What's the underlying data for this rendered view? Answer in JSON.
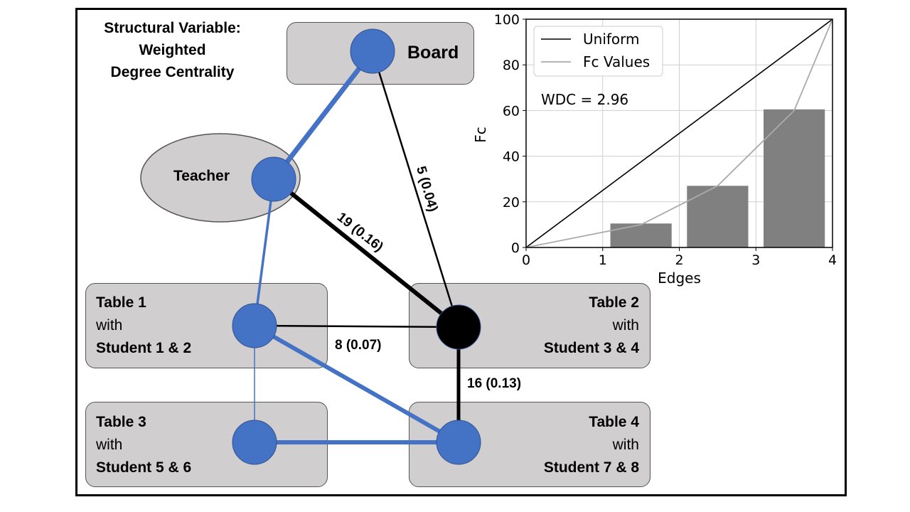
{
  "title": {
    "line1": "Structural Variable:",
    "line2": "Weighted",
    "line3": "Degree Centrality"
  },
  "nodes": {
    "board": {
      "label": "Board"
    },
    "teacher": {
      "label": "Teacher"
    },
    "table1": {
      "line1": "Table 1",
      "line2": "with",
      "line3": "Student 1 & 2"
    },
    "table2": {
      "line1": "Table 2",
      "line2": "with",
      "line3": "Student 3 & 4"
    },
    "table3": {
      "line1": "Table 3",
      "line2": "with",
      "line3": "Student 5 & 6"
    },
    "table4": {
      "line1": "Table 4",
      "line2": "with",
      "line3": "Student 7 & 8"
    }
  },
  "edges": {
    "board_table2": "5 (0.04)",
    "teacher_table2": "19 (0.16)",
    "table1_table2": "8 (0.07)",
    "table2_table4": "16 (0.13)"
  },
  "colors": {
    "node": "#4472c4",
    "focus_node": "#000000",
    "box": "#d0cece",
    "bar": "#808080"
  },
  "chart_data": {
    "type": "bar",
    "xlabel": "Edges",
    "ylabel": "Fc",
    "xlim": [
      0,
      4
    ],
    "ylim": [
      0,
      100
    ],
    "xticks": [
      "0",
      "1",
      "2",
      "3",
      "4"
    ],
    "yticks": [
      "0",
      "20",
      "40",
      "60",
      "80",
      "100"
    ],
    "annotation": "WDC = 2.96",
    "bars": {
      "x": [
        1.5,
        2.5,
        3.5
      ],
      "values": [
        10.5,
        27,
        60.5
      ]
    },
    "series": [
      {
        "name": "Uniform",
        "x": [
          0,
          4
        ],
        "values": [
          0,
          100
        ]
      },
      {
        "name": "Fc Values",
        "x": [
          0,
          1.5,
          2.5,
          3.5,
          4
        ],
        "values": [
          0,
          10,
          27,
          60,
          100
        ]
      }
    ],
    "legend": [
      "Uniform",
      "Fc Values"
    ],
    "legend_position": "top-left",
    "grid": true
  }
}
